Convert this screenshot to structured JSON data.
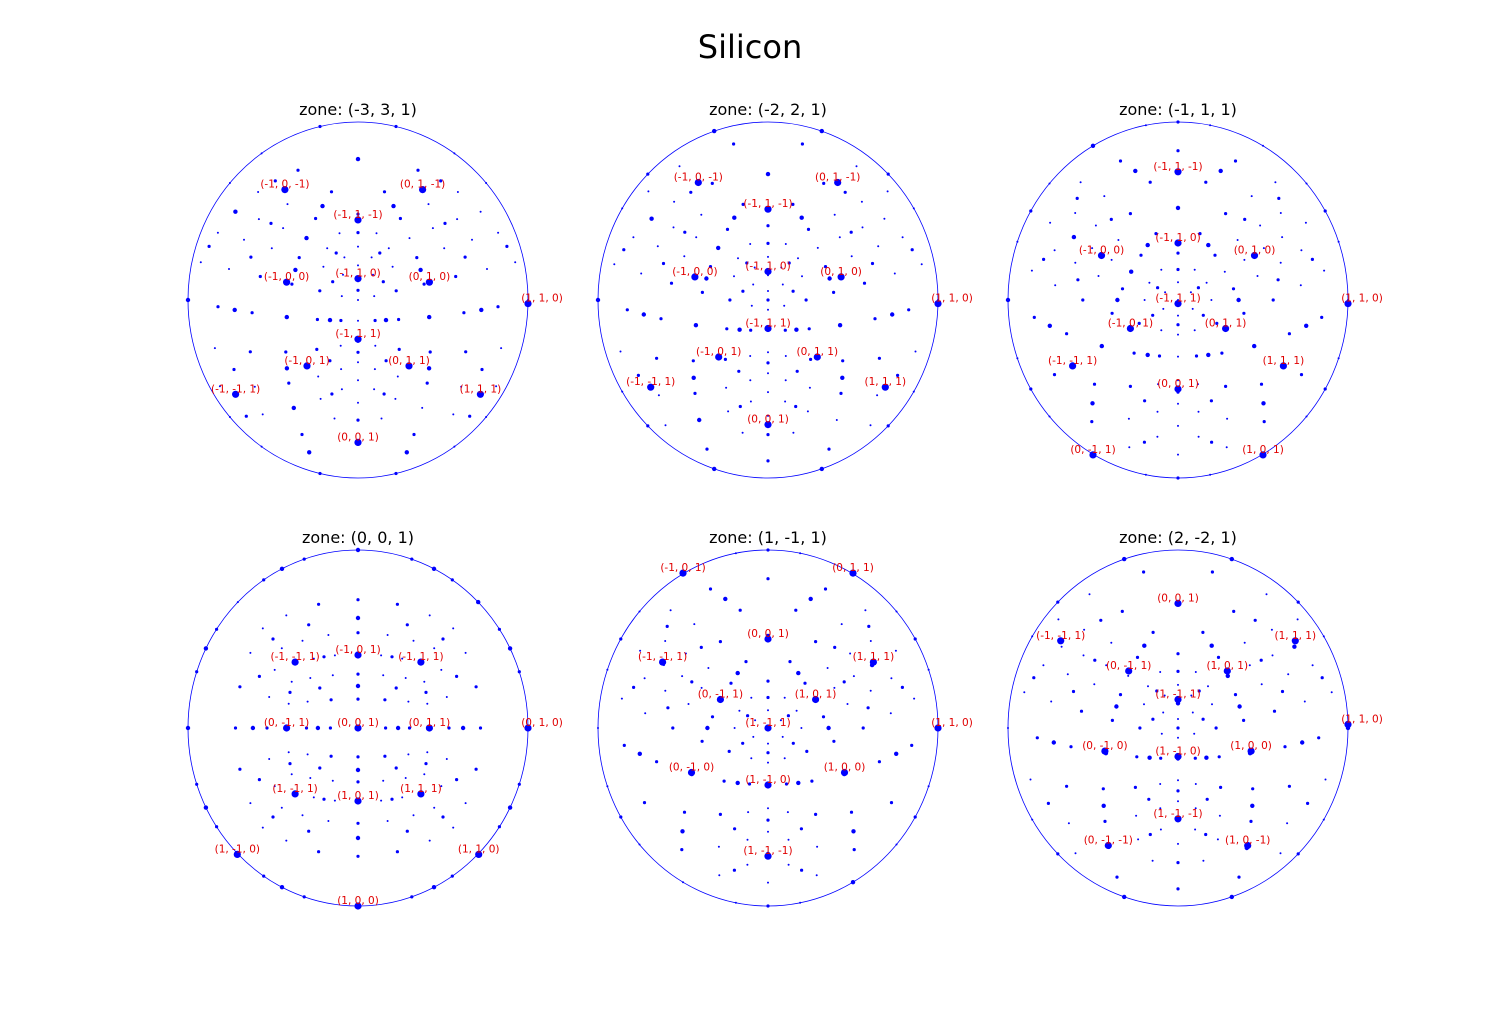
{
  "figure": {
    "title": "Silicon"
  },
  "colors": {
    "circle": "#0000ff",
    "points": "#0000ff",
    "labels": "#e00000"
  },
  "chart_data": [
    {
      "type": "scatter",
      "title": "zone: (-3, 3, 1)",
      "projection": "stereographic",
      "labels": [
        {
          "text": "(-1, 0, -1)",
          "x": -0.43,
          "y": 0.62
        },
        {
          "text": "(0, 1, -1)",
          "x": 0.38,
          "y": 0.62
        },
        {
          "text": "(-1, 1, -1)",
          "x": 0.0,
          "y": 0.45
        },
        {
          "text": "(-1, 0, 0)",
          "x": -0.42,
          "y": 0.1
        },
        {
          "text": "(-1, 1, 0)",
          "x": 0.0,
          "y": 0.12
        },
        {
          "text": "(0, 1, 0)",
          "x": 0.42,
          "y": 0.1
        },
        {
          "text": "(1, 1, 0)",
          "x": 1.0,
          "y": -0.02
        },
        {
          "text": "(-1, 1, 1)",
          "x": 0.0,
          "y": -0.22
        },
        {
          "text": "(-1, 0, 1)",
          "x": -0.3,
          "y": -0.37
        },
        {
          "text": "(0, 1, 1)",
          "x": 0.3,
          "y": -0.37
        },
        {
          "text": "(-1, -1, 1)",
          "x": -0.72,
          "y": -0.53
        },
        {
          "text": "(1, 1, 1)",
          "x": 0.72,
          "y": -0.53
        },
        {
          "text": "(0, 0, 1)",
          "x": 0.0,
          "y": -0.8
        }
      ]
    },
    {
      "type": "scatter",
      "title": "zone: (-2, 2, 1)",
      "projection": "stereographic",
      "labels": [
        {
          "text": "(-1, 0, -1)",
          "x": -0.41,
          "y": 0.66
        },
        {
          "text": "(0, 1, -1)",
          "x": 0.41,
          "y": 0.66
        },
        {
          "text": "(-1, 1, -1)",
          "x": 0.0,
          "y": 0.51
        },
        {
          "text": "(-1, 1, 0)",
          "x": 0.0,
          "y": 0.16
        },
        {
          "text": "(-1, 0, 0)",
          "x": -0.43,
          "y": 0.13
        },
        {
          "text": "(0, 1, 0)",
          "x": 0.43,
          "y": 0.13
        },
        {
          "text": "(1, 1, 0)",
          "x": 1.0,
          "y": -0.02
        },
        {
          "text": "(-1, 1, 1)",
          "x": 0.0,
          "y": -0.16
        },
        {
          "text": "(-1, 0, 1)",
          "x": -0.29,
          "y": -0.32
        },
        {
          "text": "(0, 1, 1)",
          "x": 0.29,
          "y": -0.32
        },
        {
          "text": "(-1, -1, 1)",
          "x": -0.69,
          "y": -0.49
        },
        {
          "text": "(1, 1, 1)",
          "x": 0.69,
          "y": -0.49
        },
        {
          "text": "(0, 0, 1)",
          "x": 0.0,
          "y": -0.7
        }
      ]
    },
    {
      "type": "scatter",
      "title": "zone: (-1, 1, 1)",
      "projection": "stereographic",
      "labels": [
        {
          "text": "(-1, 1, -1)",
          "x": 0.0,
          "y": 0.72
        },
        {
          "text": "(-1, 1, 0)",
          "x": 0.0,
          "y": 0.32
        },
        {
          "text": "(-1, 0, 0)",
          "x": -0.45,
          "y": 0.25
        },
        {
          "text": "(0, 1, 0)",
          "x": 0.45,
          "y": 0.25
        },
        {
          "text": "(1, 1, 0)",
          "x": 1.0,
          "y": -0.02
        },
        {
          "text": "(-1, 1, 1)",
          "x": 0.0,
          "y": -0.02
        },
        {
          "text": "(-1, 0, 1)",
          "x": -0.28,
          "y": -0.16
        },
        {
          "text": "(0, 1, 1)",
          "x": 0.28,
          "y": -0.16
        },
        {
          "text": "(-1, -1, 1)",
          "x": -0.62,
          "y": -0.37
        },
        {
          "text": "(1, 1, 1)",
          "x": 0.62,
          "y": -0.37
        },
        {
          "text": "(0, 0, 1)",
          "x": 0.0,
          "y": -0.5
        },
        {
          "text": "(0, -1, 1)",
          "x": -0.5,
          "y": -0.87
        },
        {
          "text": "(1, 0, 1)",
          "x": 0.5,
          "y": -0.87
        }
      ]
    },
    {
      "type": "scatter",
      "title": "zone: (0, 0, 1)",
      "projection": "stereographic",
      "labels": [
        {
          "text": "(-1, 0, 1)",
          "x": 0.0,
          "y": 0.41
        },
        {
          "text": "(-1, -1, 1)",
          "x": -0.37,
          "y": 0.37
        },
        {
          "text": "(-1, 1, 1)",
          "x": 0.37,
          "y": 0.37
        },
        {
          "text": "(0, -1, 1)",
          "x": -0.42,
          "y": 0.0
        },
        {
          "text": "(0, 0, 1)",
          "x": 0.0,
          "y": 0.0
        },
        {
          "text": "(0, 1, 1)",
          "x": 0.42,
          "y": 0.0
        },
        {
          "text": "(0, 1, 0)",
          "x": 1.0,
          "y": 0.0
        },
        {
          "text": "(1, -1, 1)",
          "x": -0.37,
          "y": -0.37
        },
        {
          "text": "(1, 1, 1)",
          "x": 0.37,
          "y": -0.37
        },
        {
          "text": "(1, 0, 1)",
          "x": 0.0,
          "y": -0.41
        },
        {
          "text": "(1, -1, 0)",
          "x": -0.71,
          "y": -0.71
        },
        {
          "text": "(1, 1, 0)",
          "x": 0.71,
          "y": -0.71
        },
        {
          "text": "(1, 0, 0)",
          "x": 0.0,
          "y": -1.0
        }
      ]
    },
    {
      "type": "scatter",
      "title": "zone: (1, -1, 1)",
      "projection": "stereographic",
      "labels": [
        {
          "text": "(-1, 0, 1)",
          "x": -0.5,
          "y": 0.87
        },
        {
          "text": "(0, 1, 1)",
          "x": 0.5,
          "y": 0.87
        },
        {
          "text": "(0, 0, 1)",
          "x": 0.0,
          "y": 0.5
        },
        {
          "text": "(-1, -1, 1)",
          "x": -0.62,
          "y": 0.37
        },
        {
          "text": "(1, 1, 1)",
          "x": 0.62,
          "y": 0.37
        },
        {
          "text": "(0, -1, 1)",
          "x": -0.28,
          "y": 0.16
        },
        {
          "text": "(1, 0, 1)",
          "x": 0.28,
          "y": 0.16
        },
        {
          "text": "(1, -1, 1)",
          "x": 0.0,
          "y": 0.0
        },
        {
          "text": "(1, 1, 0)",
          "x": 1.0,
          "y": 0.0
        },
        {
          "text": "(0, -1, 0)",
          "x": -0.45,
          "y": -0.25
        },
        {
          "text": "(1, 0, 0)",
          "x": 0.45,
          "y": -0.25
        },
        {
          "text": "(1, -1, 0)",
          "x": 0.0,
          "y": -0.32
        },
        {
          "text": "(1, -1, -1)",
          "x": 0.0,
          "y": -0.72
        }
      ]
    },
    {
      "type": "scatter",
      "title": "zone: (2, -2, 1)",
      "projection": "stereographic",
      "labels": [
        {
          "text": "(0, 0, 1)",
          "x": 0.0,
          "y": 0.7
        },
        {
          "text": "(-1, -1, 1)",
          "x": -0.69,
          "y": 0.49
        },
        {
          "text": "(1, 1, 1)",
          "x": 0.69,
          "y": 0.49
        },
        {
          "text": "(0, -1, 1)",
          "x": -0.29,
          "y": 0.32
        },
        {
          "text": "(1, 0, 1)",
          "x": 0.29,
          "y": 0.32
        },
        {
          "text": "(1, -1, 1)",
          "x": 0.0,
          "y": 0.16
        },
        {
          "text": "(1, 1, 0)",
          "x": 1.0,
          "y": 0.02
        },
        {
          "text": "(0, -1, 0)",
          "x": -0.43,
          "y": -0.13
        },
        {
          "text": "(1, 0, 0)",
          "x": 0.43,
          "y": -0.13
        },
        {
          "text": "(1, -1, 0)",
          "x": 0.0,
          "y": -0.16
        },
        {
          "text": "(1, -1, -1)",
          "x": 0.0,
          "y": -0.51
        },
        {
          "text": "(0, -1, -1)",
          "x": -0.41,
          "y": -0.66
        },
        {
          "text": "(1, 0, -1)",
          "x": 0.41,
          "y": -0.66
        }
      ]
    }
  ]
}
